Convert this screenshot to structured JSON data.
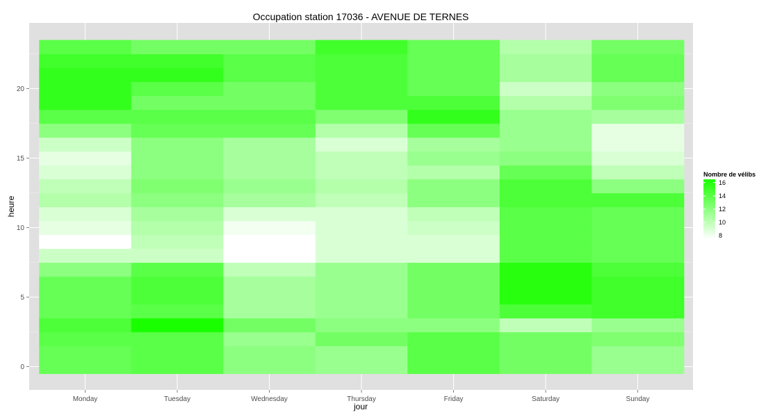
{
  "chart_data": {
    "type": "heatmap",
    "title": "Occupation station 17036 - AVENUE DE TERNES",
    "xlabel": "jour",
    "ylabel": "heure",
    "categories": [
      "Monday",
      "Tuesday",
      "Wednesday",
      "Thursday",
      "Friday",
      "Saturday",
      "Sunday"
    ],
    "hours": [
      0,
      1,
      2,
      3,
      4,
      5,
      6,
      7,
      8,
      9,
      10,
      11,
      12,
      13,
      14,
      15,
      16,
      17,
      18,
      19,
      20,
      21,
      22,
      23
    ],
    "y_ticks": [
      0,
      5,
      10,
      15,
      20
    ],
    "ylim": [
      -0.5,
      23.5
    ],
    "values": [
      [
        13.5,
        13.5,
        14,
        14.5,
        13.5,
        13.5,
        13.5,
        12,
        9.5,
        7.5,
        8.5,
        9,
        10.5,
        10,
        9,
        8.5,
        9.5,
        12,
        14,
        15.5,
        15.5,
        15.5,
        15,
        14
      ],
      [
        14,
        14,
        14,
        16.5,
        14,
        14.5,
        14.5,
        14,
        9.5,
        10,
        10.5,
        11,
        12,
        12.5,
        12,
        12,
        12,
        13.5,
        14,
        13,
        14,
        15.5,
        15,
        13
      ],
      [
        12,
        12,
        11.5,
        13,
        11,
        11,
        11,
        10,
        7.5,
        7.5,
        8,
        9,
        11,
        11.5,
        11,
        11,
        11,
        13.5,
        14,
        13,
        13,
        14,
        14,
        13
      ],
      [
        11.5,
        11.5,
        13,
        12,
        11.5,
        11.5,
        11.5,
        11.5,
        9,
        9,
        9,
        9,
        10,
        10.5,
        10,
        10,
        9,
        10.5,
        12.5,
        14.5,
        14.5,
        14.5,
        14.5,
        15
      ],
      [
        14,
        14,
        14,
        12,
        13,
        13,
        13,
        13,
        9,
        9,
        9.5,
        10,
        12,
        12,
        10.5,
        11.5,
        11,
        13.5,
        15.5,
        14.5,
        13.5,
        13.5,
        13.5,
        13.5
      ],
      [
        13,
        13,
        13,
        10,
        14.5,
        16,
        16,
        16,
        14,
        14,
        14,
        14,
        14.5,
        14.5,
        13.5,
        12,
        11.5,
        11.5,
        11.5,
        10.5,
        9.5,
        11,
        11,
        10.5
      ],
      [
        11.5,
        11.5,
        12.5,
        11.5,
        15,
        15,
        15,
        14.5,
        13.5,
        13.5,
        13.5,
        13.5,
        14.5,
        12,
        10,
        9,
        8.5,
        8.5,
        11,
        12.5,
        12,
        13.5,
        13.5,
        13
      ]
    ],
    "legend": {
      "title": "Nombre de vélibs",
      "ticks": [
        8,
        10,
        12,
        14,
        16
      ],
      "range": [
        7.5,
        16.5
      ],
      "position": "right"
    },
    "colors": {
      "low": "#ffffff",
      "high": "#1aff00",
      "panel_background": "#e0e0e0",
      "grid": "#ffffff"
    },
    "grid": true
  }
}
